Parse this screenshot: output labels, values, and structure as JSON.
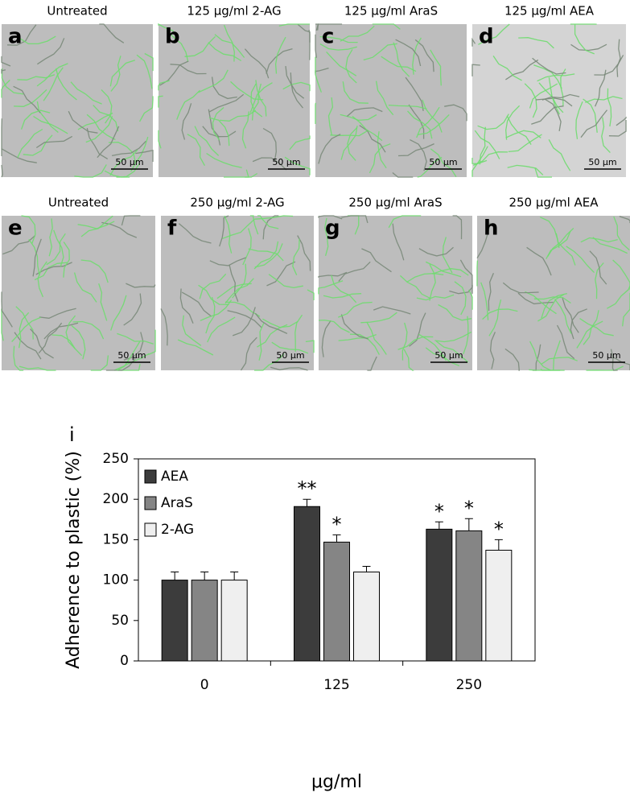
{
  "panels": [
    {
      "label": "a",
      "title": "Untreated",
      "scale": "50 μm"
    },
    {
      "label": "b",
      "title": "125 μg/ml 2-AG",
      "scale": "50 μm"
    },
    {
      "label": "c",
      "title": "125 μg/ml AraS",
      "scale": "50 μm"
    },
    {
      "label": "d",
      "title": "125 μg/ml AEA",
      "scale": "50 μm"
    },
    {
      "label": "e",
      "title": "Untreated",
      "scale": "50 μm"
    },
    {
      "label": "f",
      "title": "250 μg/ml 2-AG",
      "scale": "50 μm"
    },
    {
      "label": "g",
      "title": "250 μg/ml AraS",
      "scale": "50 μm"
    },
    {
      "label": "h",
      "title": "250 μg/ml AEA",
      "scale": "50 μm"
    }
  ],
  "chart_data": {
    "type": "bar",
    "panel_label": "i",
    "x_label": "μg/ml",
    "y_label": "Adherence to plastic (%)",
    "categories": [
      "0",
      "125",
      "250"
    ],
    "series": [
      {
        "name": "AEA",
        "color": "#3c3c3c",
        "values": [
          100,
          191,
          163
        ],
        "errors": [
          10,
          9,
          9
        ],
        "significance": [
          null,
          "**",
          "*"
        ]
      },
      {
        "name": "AraS",
        "color": "#858585",
        "values": [
          100,
          147,
          161
        ],
        "errors": [
          10,
          9,
          15
        ],
        "significance": [
          null,
          "*",
          "*"
        ]
      },
      {
        "name": "2-AG",
        "color": "#efefef",
        "values": [
          100,
          110,
          137
        ],
        "errors": [
          10,
          7,
          13
        ],
        "significance": [
          null,
          null,
          "*"
        ]
      }
    ],
    "ylim": [
      0,
      250
    ],
    "yticks": [
      0,
      50,
      100,
      150,
      200,
      250
    ],
    "legend": "upper-left"
  }
}
